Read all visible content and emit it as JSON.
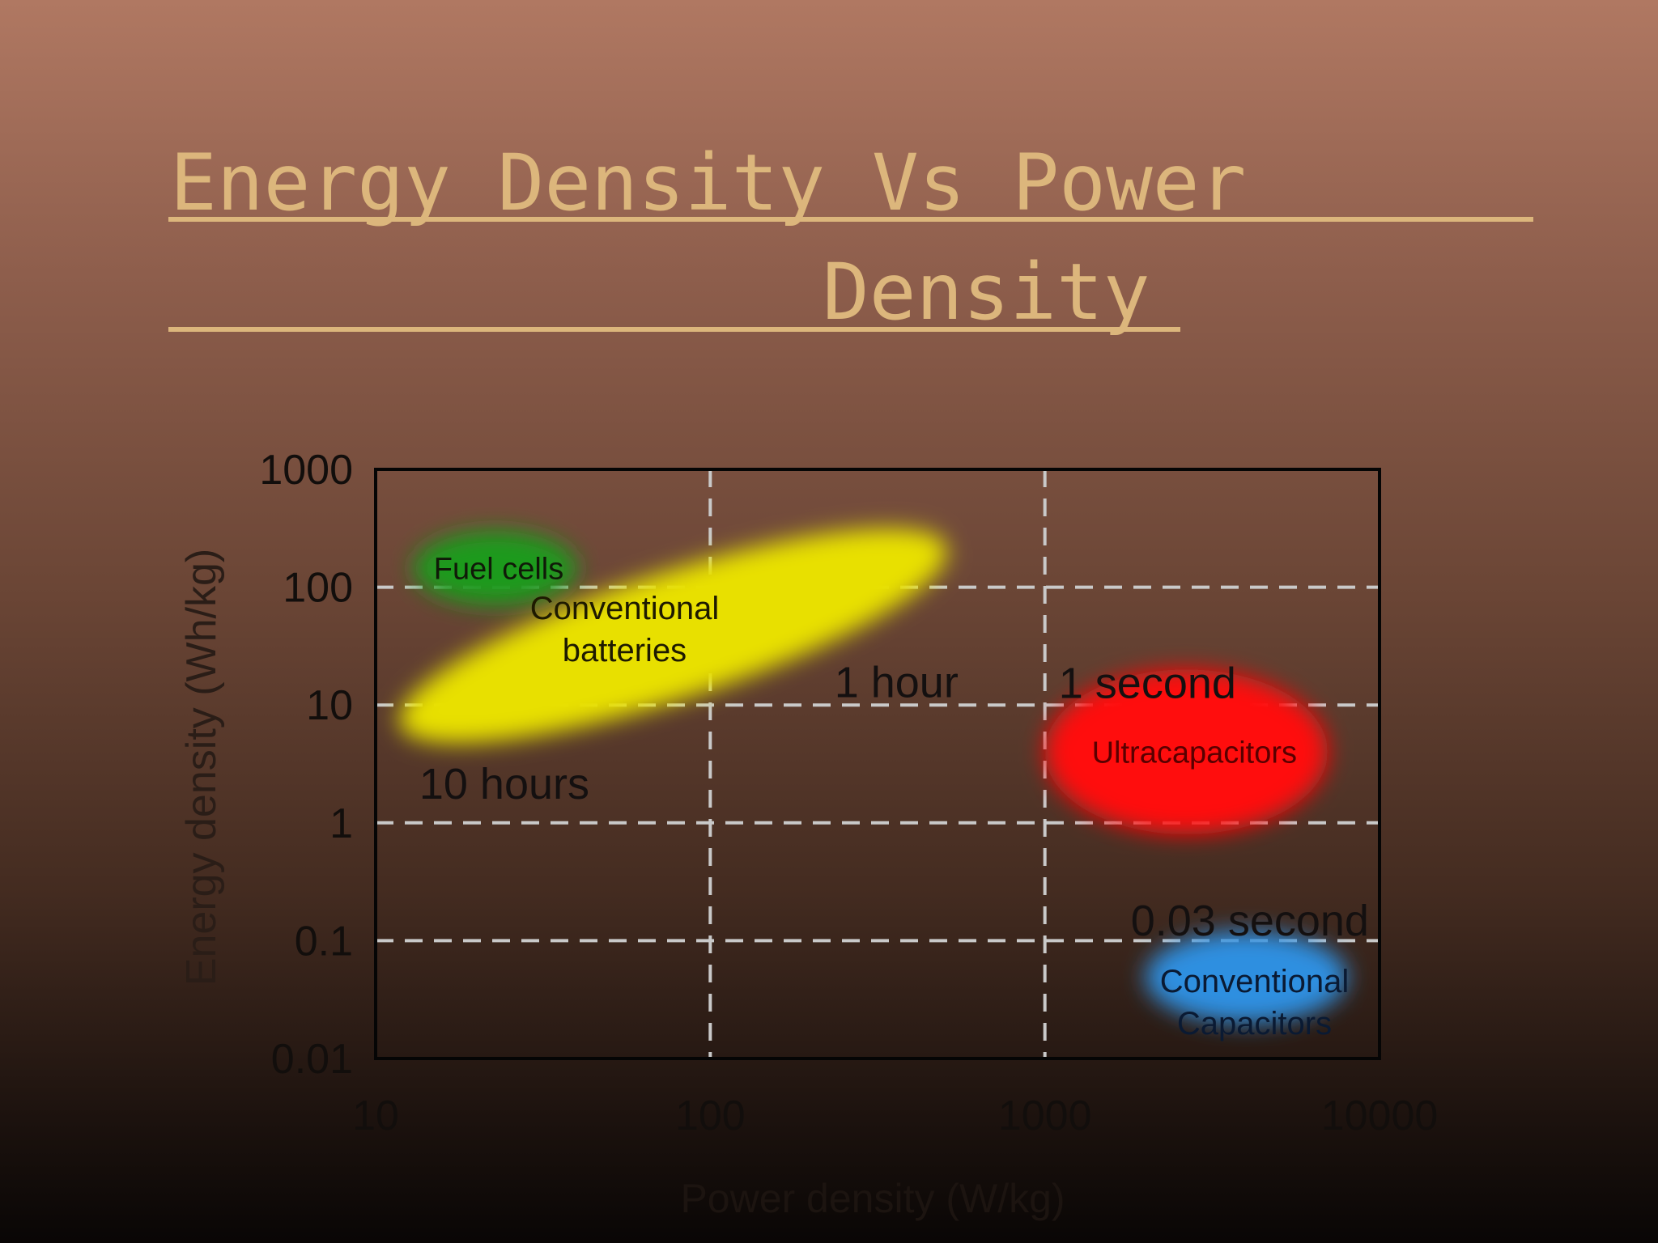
{
  "slide": {
    "title_line1": "Energy Density Vs Power",
    "title_line2": "Density"
  },
  "chart_data": {
    "type": "scatter",
    "title": "",
    "xlabel": "Power density (W/kg)",
    "ylabel": "Energy density (Wh/kg)",
    "xscale": "log",
    "yscale": "log",
    "xlim": [
      10,
      10000
    ],
    "ylim": [
      0.01,
      1000
    ],
    "xticks": [
      "10",
      "100",
      "1000",
      "10000"
    ],
    "yticks": [
      "1000",
      "100",
      "10",
      "1",
      "0.1",
      "0.01"
    ],
    "grid": "dashed at x=100, 1000 and y=0.1, 1, 10, 100",
    "regions": [
      {
        "label": "Fuel cells",
        "color": "#1a9a1a",
        "x_range": [
          13,
          40
        ],
        "y_range": [
          70,
          300
        ]
      },
      {
        "label": "Conventional batteries",
        "color": "#e8e000",
        "x_range": [
          12,
          500
        ],
        "y_range": [
          6,
          250
        ]
      },
      {
        "label": "Ultracapacitors",
        "color": "#ff1010",
        "x_range": [
          1000,
          7000
        ],
        "y_range": [
          0.8,
          20
        ]
      },
      {
        "label": "Conventional Capacitors",
        "color": "#2f8fe0",
        "x_range": [
          2000,
          8000
        ],
        "y_range": [
          0.02,
          0.12
        ]
      }
    ],
    "time_annotations": [
      "10 hours",
      "1 hour",
      "1 second",
      "0.03 second"
    ]
  }
}
